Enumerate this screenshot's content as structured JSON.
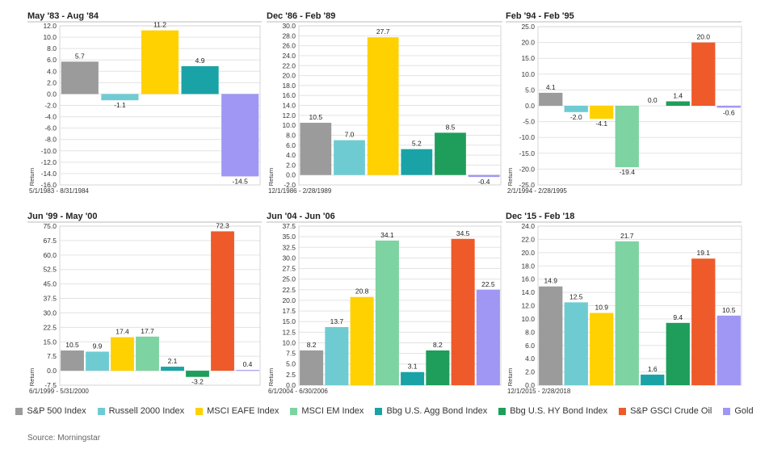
{
  "colors": [
    "#9b9b9b",
    "#6fcbd2",
    "#ffd100",
    "#7dd3a1",
    "#1aa3a6",
    "#1e9e5a",
    "#ee5a2a",
    "#9f97f3"
  ],
  "legend": [
    "S&P 500 Index",
    "Russell 2000 Index",
    "MSCI EAFE Index",
    "MSCI EM Index",
    "Bbg U.S. Agg Bond Index",
    "Bbg U.S. HY Bond Index",
    "S&P GSCI Crude Oil",
    "Gold"
  ],
  "source": "Source: Morningstar",
  "ylabel": "Return",
  "chart_data": [
    {
      "type": "bar",
      "title": "May '83 - Aug '84",
      "subtitle": "5/1/1983 - 8/31/1984",
      "ylabel": "Return",
      "ylim": [
        -16,
        12
      ],
      "ticks": [
        "12.0",
        "10.0",
        "8.0",
        "6.0",
        "4.0",
        "2.0",
        "0.0",
        "-2.0",
        "-4.0",
        "-6.0",
        "-8.0",
        "-10.0",
        "-12.0",
        "-14.0",
        "-16.0"
      ],
      "series_index": [
        0,
        1,
        2,
        4,
        7
      ],
      "values": [
        5.7,
        -1.1,
        11.2,
        4.9,
        -14.5
      ],
      "labels": [
        "5.7",
        "-1.1",
        "11.2",
        "4.9",
        "-14.5"
      ]
    },
    {
      "type": "bar",
      "title": "Dec '86 - Feb '89",
      "subtitle": "12/1/1986 - 2/28/1989",
      "ylabel": "Return",
      "ylim": [
        -2,
        30
      ],
      "ticks": [
        "30.0",
        "28.0",
        "26.0",
        "24.0",
        "22.0",
        "20.0",
        "18.0",
        "16.0",
        "14.0",
        "12.0",
        "10.0",
        "8.0",
        "6.0",
        "4.0",
        "2.0",
        "0.0",
        "-2.0"
      ],
      "series_index": [
        0,
        1,
        2,
        4,
        5,
        7
      ],
      "values": [
        10.5,
        7.0,
        27.7,
        5.2,
        8.5,
        -0.4
      ],
      "labels": [
        "10.5",
        "7.0",
        "27.7",
        "5.2",
        "8.5",
        "-0.4"
      ]
    },
    {
      "type": "bar",
      "title": "Feb '94 - Feb '95",
      "subtitle": "2/1/1994 - 2/28/1995",
      "ylabel": "Return",
      "ylim": [
        -25,
        25
      ],
      "ticks": [
        "25.0",
        "20.0",
        "15.0",
        "10.0",
        "5.0",
        "0.0",
        "-5.0",
        "-10.0",
        "-15.0",
        "-20.0",
        "-25.0"
      ],
      "series_index": [
        0,
        1,
        2,
        3,
        4,
        5,
        6,
        7
      ],
      "values": [
        4.1,
        -2.0,
        -4.1,
        -19.4,
        0.0,
        1.4,
        20.0,
        -0.6
      ],
      "labels": [
        "4.1",
        "-2.0",
        "-4.1",
        "-19.4",
        "0.0",
        "1.4",
        "20.0",
        "-0.6"
      ]
    },
    {
      "type": "bar",
      "title": "Jun '99 - May '00",
      "subtitle": "6/1/1999 - 5/31/2000",
      "ylabel": "Return",
      "ylim": [
        -7.5,
        75
      ],
      "ticks": [
        "75.0",
        "67.5",
        "60.0",
        "52.5",
        "45.0",
        "37.5",
        "30.0",
        "22.5",
        "15.0",
        "7.5",
        "0.0",
        "-7.5"
      ],
      "series_index": [
        0,
        1,
        2,
        3,
        4,
        5,
        6,
        7
      ],
      "values": [
        10.5,
        9.9,
        17.4,
        17.7,
        2.1,
        -3.2,
        72.3,
        0.4
      ],
      "labels": [
        "10.5",
        "9.9",
        "17.4",
        "17.7",
        "2.1",
        "-3.2",
        "72.3",
        "0.4"
      ]
    },
    {
      "type": "bar",
      "title": "Jun '04 - Jun '06",
      "subtitle": "6/1/2004 - 6/30/2006",
      "ylabel": "Return",
      "ylim": [
        0,
        37.5
      ],
      "ticks": [
        "37.5",
        "35.0",
        "32.5",
        "30.0",
        "27.5",
        "25.0",
        "22.5",
        "20.0",
        "17.5",
        "15.0",
        "12.5",
        "10.0",
        "7.5",
        "5.0",
        "2.5",
        "0.0"
      ],
      "series_index": [
        0,
        1,
        2,
        3,
        4,
        5,
        6,
        7
      ],
      "values": [
        8.2,
        13.7,
        20.8,
        34.1,
        3.1,
        8.2,
        34.5,
        22.5
      ],
      "labels": [
        "8.2",
        "13.7",
        "20.8",
        "34.1",
        "3.1",
        "8.2",
        "34.5",
        "22.5"
      ]
    },
    {
      "type": "bar",
      "title": "Dec '15 - Feb '18",
      "subtitle": "12/1/2015 - 2/28/2018",
      "ylabel": "Return",
      "ylim": [
        0,
        24
      ],
      "ticks": [
        "24.0",
        "22.0",
        "20.0",
        "18.0",
        "16.0",
        "14.0",
        "12.0",
        "10.0",
        "8.0",
        "6.0",
        "4.0",
        "2.0",
        "0.0"
      ],
      "series_index": [
        0,
        1,
        2,
        3,
        4,
        5,
        6,
        7
      ],
      "values": [
        14.9,
        12.5,
        10.9,
        21.7,
        1.6,
        9.4,
        19.1,
        10.5
      ],
      "labels": [
        "14.9",
        "12.5",
        "10.9",
        "21.7",
        "1.6",
        "9.4",
        "19.1",
        "10.5"
      ]
    }
  ]
}
